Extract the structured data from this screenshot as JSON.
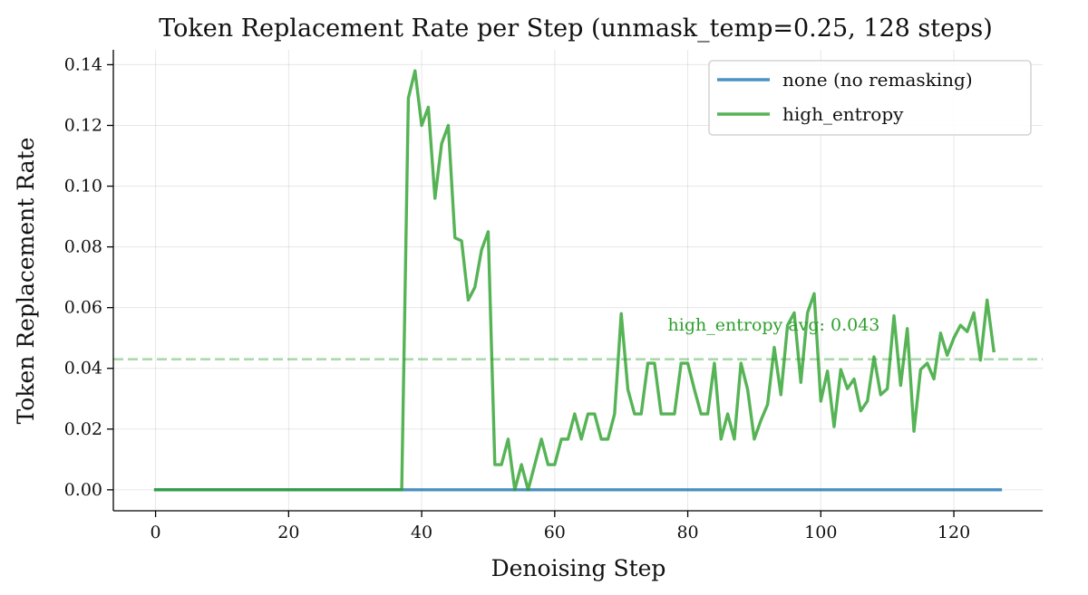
{
  "chart_data": {
    "type": "line",
    "title": "Token Replacement Rate per Step (unmask_temp=0.25, 128 steps)",
    "xlabel": "Denoising Step",
    "ylabel": "Token Replacement Rate",
    "xlim": [
      -6.35,
      133.35
    ],
    "ylim": [
      -0.0069,
      0.1449
    ],
    "xticks": [
      0,
      20,
      40,
      60,
      80,
      100,
      120
    ],
    "yticks": [
      0.0,
      0.02,
      0.04,
      0.06,
      0.08,
      0.1,
      0.12,
      0.14
    ],
    "ytick_labels": [
      "0.00",
      "0.02",
      "0.04",
      "0.06",
      "0.08",
      "0.10",
      "0.12",
      "0.14"
    ],
    "grid": true,
    "legend_position": "top-right",
    "series": [
      {
        "name": "none (no remasking)",
        "color": "#1f77b4",
        "x_start": 0,
        "values": [
          0,
          0,
          0,
          0,
          0,
          0,
          0,
          0,
          0,
          0,
          0,
          0,
          0,
          0,
          0,
          0,
          0,
          0,
          0,
          0,
          0,
          0,
          0,
          0,
          0,
          0,
          0,
          0,
          0,
          0,
          0,
          0,
          0,
          0,
          0,
          0,
          0,
          0,
          0,
          0,
          0,
          0,
          0,
          0,
          0,
          0,
          0,
          0,
          0,
          0,
          0,
          0,
          0,
          0,
          0,
          0,
          0,
          0,
          0,
          0,
          0,
          0,
          0,
          0,
          0,
          0,
          0,
          0,
          0,
          0,
          0,
          0,
          0,
          0,
          0,
          0,
          0,
          0,
          0,
          0,
          0,
          0,
          0,
          0,
          0,
          0,
          0,
          0,
          0,
          0,
          0,
          0,
          0,
          0,
          0,
          0,
          0,
          0,
          0,
          0,
          0,
          0,
          0,
          0,
          0,
          0,
          0,
          0,
          0,
          0,
          0,
          0,
          0,
          0,
          0,
          0,
          0,
          0,
          0,
          0,
          0,
          0,
          0,
          0,
          0,
          0,
          0,
          0
        ]
      },
      {
        "name": "high_entropy",
        "color": "#2ca02c",
        "x_start": 0,
        "values": [
          0,
          0,
          0,
          0,
          0,
          0,
          0,
          0,
          0,
          0,
          0,
          0,
          0,
          0,
          0,
          0,
          0,
          0,
          0,
          0,
          0,
          0,
          0,
          0,
          0,
          0,
          0,
          0,
          0,
          0,
          0,
          0,
          0,
          0,
          0,
          0,
          0,
          0,
          0.129,
          0.138,
          0.12,
          0.126,
          0.096,
          0.114,
          0.12,
          0.083,
          0.082,
          0.0625,
          0.0667,
          0.079,
          0.085,
          0.0083,
          0.0083,
          0.0167,
          0,
          0.0083,
          0,
          0.0083,
          0.0167,
          0.0083,
          0.0083,
          0.0167,
          0.0167,
          0.025,
          0.0167,
          0.025,
          0.025,
          0.0167,
          0.0167,
          0.025,
          0.058,
          0.033,
          0.025,
          0.025,
          0.0417,
          0.0417,
          0.025,
          0.025,
          0.025,
          0.0417,
          0.0417,
          0.033,
          0.025,
          0.025,
          0.0417,
          0.0167,
          0.025,
          0.0167,
          0.0417,
          0.033,
          0.0167,
          0.0229,
          0.0281,
          0.0469,
          0.0313,
          0.0542,
          0.0583,
          0.0354,
          0.0583,
          0.0646,
          0.0292,
          0.0391,
          0.0208,
          0.0396,
          0.0333,
          0.0365,
          0.026,
          0.0292,
          0.0438,
          0.0313,
          0.0333,
          0.0573,
          0.0344,
          0.0531,
          0.0193,
          0.0396,
          0.0417,
          0.0365,
          0.0516,
          0.0443,
          0.05,
          0.0542,
          0.0521,
          0.0583,
          0.0427,
          0.0625,
          0.0458
        ]
      }
    ],
    "reference_line": {
      "y": 0.043,
      "color": "#2ca02c",
      "label": "high_entropy avg: 0.043",
      "label_x": 77,
      "label_y": 0.0525
    }
  }
}
